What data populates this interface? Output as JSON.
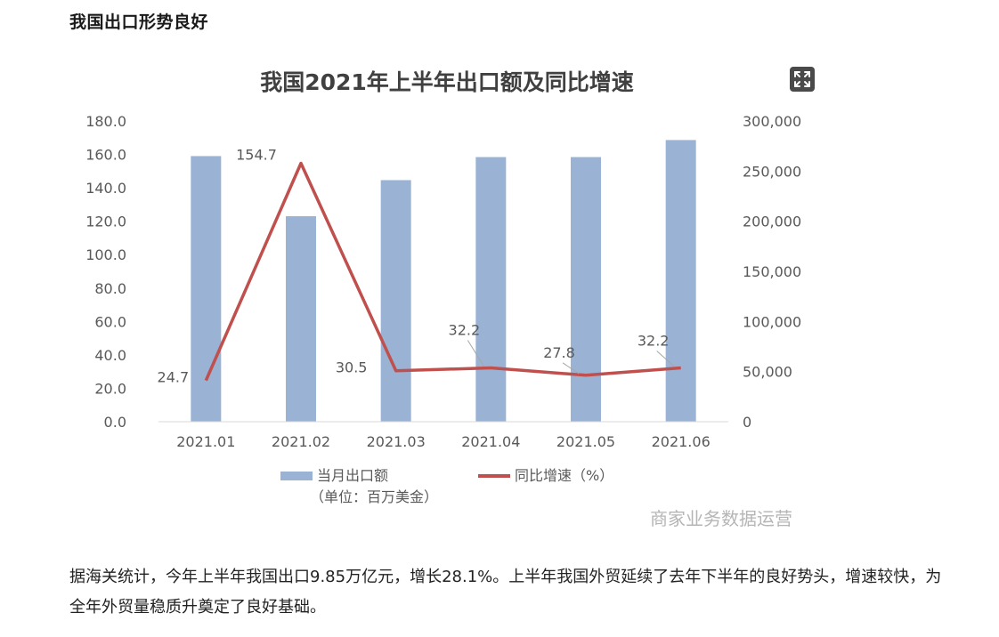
{
  "article": {
    "section_title": "我国出口形势良好",
    "paragraph": "据海关统计，今年上半年我国出口9.85万亿元，增长28.1%。上半年我国外贸延续了去年下半年的良好势头，增速较快，为全年外贸量稳质升奠定了良好基础。"
  },
  "controls": {
    "expand_icon": "expand-arrows-icon"
  },
  "chart_data": {
    "type": "bar",
    "title": "我国2021年上半年出口额及同比增速",
    "categories": [
      "2021.01",
      "2021.02",
      "2021.03",
      "2021.04",
      "2021.05",
      "2021.06"
    ],
    "series": [
      {
        "name": "当月出口额",
        "name_note": "（单位：百万美金）",
        "type": "bar",
        "axis": "right",
        "color": "#9ab3d5",
        "values": [
          265000,
          205000,
          241000,
          264000,
          264000,
          281000
        ]
      },
      {
        "name": "同比增速（%）",
        "type": "line",
        "axis": "left",
        "color": "#c0504d",
        "values": [
          24.7,
          154.7,
          30.5,
          32.2,
          27.8,
          32.2
        ],
        "labels": [
          "24.7",
          "154.7",
          "30.5",
          "32.2",
          "27.8",
          "32.2"
        ]
      }
    ],
    "y_left": {
      "min": 0,
      "max": 180,
      "ticks": [
        "0.0",
        "20.0",
        "40.0",
        "60.0",
        "80.0",
        "100.0",
        "120.0",
        "140.0",
        "160.0",
        "180.0"
      ]
    },
    "y_right": {
      "min": 0,
      "max": 300000,
      "ticks": [
        "0",
        "50,000",
        "100,000",
        "150,000",
        "200,000",
        "250,000",
        "300,000"
      ]
    },
    "grid": false,
    "legend_position": "bottom",
    "watermark": "商家业务数据运营",
    "colors": {
      "bar": "#9ab3d5",
      "line": "#c0504d",
      "axis_text": "#595959",
      "title": "#404040"
    }
  }
}
